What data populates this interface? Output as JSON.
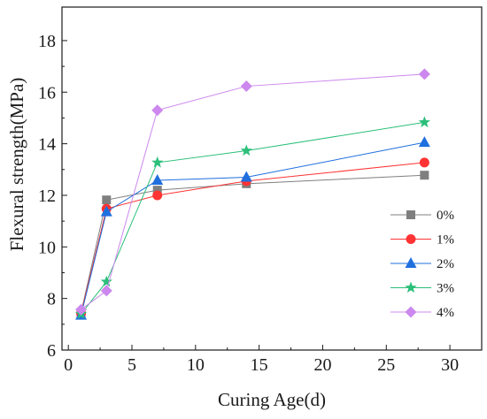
{
  "chart_data": {
    "type": "line",
    "xlabel": "Curing Age(d)",
    "ylabel": "Flexural strength(MPa)",
    "xlim": [
      -0.5,
      32.5
    ],
    "ylim": [
      6,
      19.3
    ],
    "xticks": [
      0,
      5,
      10,
      15,
      20,
      25,
      30
    ],
    "xtick_labels": [
      "0",
      "5",
      "10",
      "15",
      "20",
      "25",
      "30"
    ],
    "yticks": [
      6,
      8,
      10,
      12,
      14,
      16,
      18
    ],
    "ytick_labels": [
      "6",
      "8",
      "10",
      "12",
      "14",
      "16",
      "18"
    ],
    "grid": false,
    "legend_position": "bottom-right",
    "x": [
      1,
      3,
      7,
      14,
      28
    ],
    "series": [
      {
        "name": "0%",
        "values": [
          7.45,
          11.82,
          12.2,
          12.45,
          12.78
        ],
        "color": "#7f7f7f",
        "marker": "square"
      },
      {
        "name": "1%",
        "values": [
          7.42,
          11.48,
          12.0,
          12.55,
          13.27
        ],
        "color": "#ff3333",
        "marker": "circle"
      },
      {
        "name": "2%",
        "values": [
          7.35,
          11.36,
          12.58,
          12.7,
          14.05
        ],
        "color": "#1f6fde",
        "marker": "triangle"
      },
      {
        "name": "3%",
        "values": [
          7.4,
          8.65,
          13.27,
          13.73,
          14.83
        ],
        "color": "#2bbf7a",
        "marker": "star"
      },
      {
        "name": "4%",
        "values": [
          7.57,
          8.3,
          15.3,
          16.23,
          16.7
        ],
        "color": "#cc88ee",
        "marker": "diamond"
      }
    ]
  }
}
